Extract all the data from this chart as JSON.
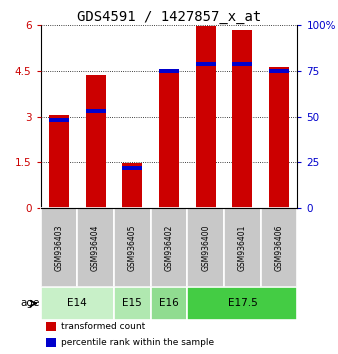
{
  "title": "GDS4591 / 1427857_x_at",
  "samples": [
    "GSM936403",
    "GSM936404",
    "GSM936405",
    "GSM936402",
    "GSM936400",
    "GSM936401",
    "GSM936406"
  ],
  "transformed_count": [
    3.05,
    4.35,
    1.48,
    4.52,
    5.95,
    5.82,
    4.62
  ],
  "percentile_rank": [
    2.88,
    3.18,
    1.32,
    4.5,
    4.72,
    4.72,
    4.5
  ],
  "ylim_left": [
    0,
    6
  ],
  "ylim_right": [
    0,
    100
  ],
  "yticks_left": [
    0,
    1.5,
    3,
    4.5,
    6
  ],
  "yticks_right": [
    0,
    25,
    50,
    75,
    100
  ],
  "ytick_labels_left": [
    "0",
    "1.5",
    "3",
    "4.5",
    "6"
  ],
  "ytick_labels_right": [
    "0",
    "25",
    "50",
    "75",
    "100%"
  ],
  "age_groups": [
    {
      "label": "E14",
      "start": 0,
      "end": 2,
      "color": "#c8f0c8"
    },
    {
      "label": "E15",
      "start": 2,
      "end": 3,
      "color": "#b0e8b0"
    },
    {
      "label": "E16",
      "start": 3,
      "end": 4,
      "color": "#90dc90"
    },
    {
      "label": "E17.5",
      "start": 4,
      "end": 7,
      "color": "#44cc44"
    }
  ],
  "bar_color_red": "#cc0000",
  "bar_color_blue": "#0000cc",
  "bar_width": 0.55,
  "sample_box_color": "#c8c8c8",
  "title_fontsize": 10,
  "tick_fontsize": 7.5,
  "age_label": "age"
}
